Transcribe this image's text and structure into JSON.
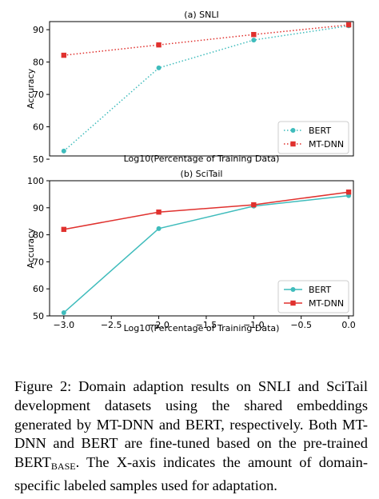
{
  "chart_data": [
    {
      "type": "line",
      "title": "(a) SNLI",
      "xlabel": "Log10(Percentage of Training Data)",
      "ylabel": "Accuracy",
      "xlim": [
        -3.15,
        0.05
      ],
      "ylim": [
        51,
        92.5
      ],
      "yticks": [
        "50",
        "60",
        "70",
        "80",
        "90"
      ],
      "yticks_values": [
        50,
        60,
        70,
        80,
        90
      ],
      "xticks": [],
      "line_style": "dotted",
      "legend": "bottom-right",
      "grid": false,
      "x": [
        -3.0,
        -2.0,
        -1.0,
        0.0
      ],
      "series": [
        {
          "name": "BERT",
          "values": [
            52.5,
            78.2,
            86.8,
            91.2
          ],
          "color": "#3fbcbc",
          "marker": "circle"
        },
        {
          "name": "MT-DNN",
          "values": [
            82.1,
            85.3,
            88.5,
            91.5
          ],
          "color": "#e0312e",
          "marker": "square"
        }
      ]
    },
    {
      "type": "line",
      "title": "(b) SciTail",
      "xlabel": "Log10(Percentage of Training Data)",
      "ylabel": "Accuracy",
      "xlim": [
        -3.15,
        0.05
      ],
      "ylim": [
        50,
        100
      ],
      "yticks": [
        "50",
        "60",
        "70",
        "80",
        "90",
        "100"
      ],
      "yticks_values": [
        50,
        60,
        70,
        80,
        90,
        100
      ],
      "xticks": [
        "−3.0",
        "−2.5",
        "−2.0",
        "−1.5",
        "−1.0",
        "−0.5",
        "0.0"
      ],
      "xticks_values": [
        -3.0,
        -2.5,
        -2.0,
        -1.5,
        -1.0,
        -0.5,
        0.0
      ],
      "line_style": "solid",
      "legend": "bottom-right",
      "grid": false,
      "x": [
        -3.0,
        -2.0,
        -1.0,
        0.0
      ],
      "series": [
        {
          "name": "BERT",
          "values": [
            51.2,
            82.3,
            90.6,
            94.5
          ],
          "color": "#3fbcbc",
          "marker": "circle"
        },
        {
          "name": "MT-DNN",
          "values": [
            82.0,
            88.4,
            91.1,
            95.8
          ],
          "color": "#e0312e",
          "marker": "square"
        }
      ]
    }
  ],
  "caption": {
    "lead": "Figure 2:  Domain adaption results on SNLI and SciTail development datasets using the shared embeddings generated by MT-DNN and BERT, respectively.  Both MT-DNN and BERT are fine-tuned based on the pre-trained BERT",
    "subscript": "BASE",
    "tail": ". The X-axis indicates the amount of domain-specific labeled samples used for adaptation."
  }
}
